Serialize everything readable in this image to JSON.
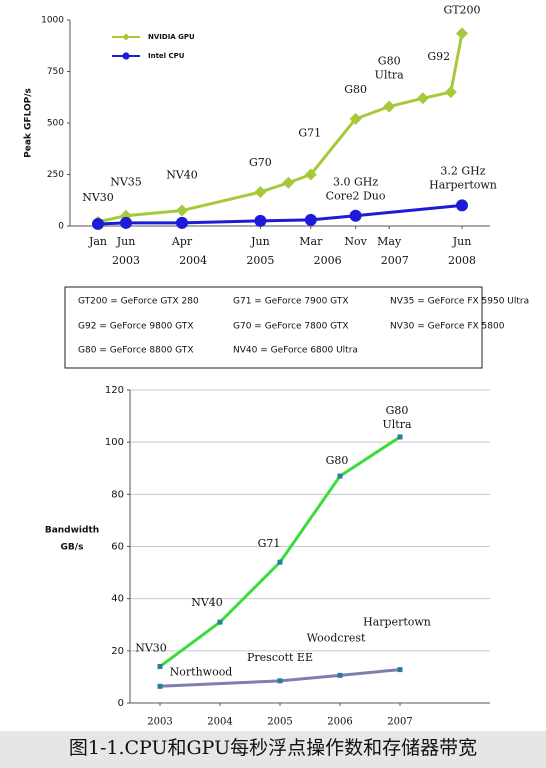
{
  "chart_data": [
    {
      "type": "line",
      "y_label": "Peak GFLOP/s",
      "legend": "top-left",
      "grid": false,
      "xlim": [
        "2002-08",
        "2008-11"
      ],
      "ylim": [
        0,
        1000
      ],
      "yticks": [
        0,
        250,
        500,
        750,
        1000
      ],
      "xticks": [
        {
          "value": "2003-01",
          "label": "Jan"
        },
        {
          "value": "2003-06",
          "label": "Jun"
        },
        {
          "value": "2004-04",
          "label": "Apr"
        },
        {
          "value": "2005-06",
          "label": "Jun"
        },
        {
          "value": "2006-03",
          "label": "Mar"
        },
        {
          "value": "2006-11",
          "label": "Nov"
        },
        {
          "value": "2007-05",
          "label": "May"
        },
        {
          "value": "2008-06",
          "label": "Jun"
        }
      ],
      "year_ticks": [
        {
          "value": "2003-06",
          "label": "2003"
        },
        {
          "value": "2004-06",
          "label": "2004"
        },
        {
          "value": "2005-06",
          "label": "2005"
        },
        {
          "value": "2006-06",
          "label": "2006"
        },
        {
          "value": "2007-06",
          "label": "2007"
        },
        {
          "value": "2008-06",
          "label": "2008"
        }
      ],
      "series": [
        {
          "name": "NVIDIA GPU",
          "color": "#a6c93a",
          "marker": "diamond",
          "x": [
            "2003-01",
            "2003-06",
            "2004-04",
            "2005-06",
            "2005-11",
            "2006-03",
            "2006-11",
            "2007-05",
            "2007-11",
            "2008-04",
            "2008-06"
          ],
          "values": [
            20,
            50,
            75,
            165,
            210,
            250,
            520,
            580,
            620,
            650,
            935
          ],
          "point_labels": [
            "NV30",
            "NV35",
            "NV40",
            "G70",
            null,
            "G71",
            "G80",
            [
              "G80",
              "Ultra"
            ],
            null,
            "G92",
            "GT200"
          ]
        },
        {
          "name": "Intel CPU",
          "color": "#1c1cd8",
          "marker": "circle",
          "x": [
            "2003-01",
            "2003-06",
            "2004-04",
            "2005-06",
            "2006-03",
            "2006-11",
            "2008-06"
          ],
          "values": [
            10,
            15,
            15,
            25,
            30,
            50,
            100
          ],
          "point_labels": [
            null,
            null,
            null,
            null,
            null,
            [
              "3.0 GHz",
              "Core2 Duo"
            ],
            [
              "3.2 GHz",
              "Harpertown"
            ]
          ]
        }
      ]
    },
    {
      "type": "line",
      "y_label": [
        "Bandwidth",
        "GB/s"
      ],
      "grid": true,
      "xlim": [
        2002.5,
        2008.5
      ],
      "ylim": [
        0,
        120
      ],
      "yticks": [
        0,
        20,
        40,
        60,
        80,
        100,
        120
      ],
      "xticks": [
        2003,
        2004,
        2005,
        2006,
        2007
      ],
      "series": [
        {
          "color": "#3ddc3d",
          "marker": "square",
          "x": [
            2003,
            2004,
            2005,
            2006,
            2007
          ],
          "values": [
            14,
            31,
            54,
            87,
            102
          ],
          "point_labels": [
            "NV30",
            "NV40",
            "G71",
            "G80",
            [
              "G80",
              "Ultra"
            ]
          ]
        },
        {
          "color": "#7b7fb0",
          "marker": "square",
          "x": [
            2003,
            2005,
            2006,
            2007
          ],
          "values": [
            6.4,
            8.5,
            10.6,
            12.8
          ],
          "point_labels": [
            "Northwood",
            "Prescott EE",
            "Woodcrest",
            "Harpertown"
          ]
        }
      ]
    }
  ],
  "legend_table": {
    "rows": [
      [
        "GT200 = GeForce GTX 280",
        "G71 = GeForce 7900 GTX",
        "NV35 = GeForce FX 5950 Ultra"
      ],
      [
        "G92 = GeForce 9800 GTX",
        "G70 = GeForce 7800 GTX",
        "NV30 = GeForce FX 5800"
      ],
      [
        "G80 = GeForce 8800 GTX",
        "NV40 = GeForce 6800 Ultra"
      ]
    ]
  },
  "caption": "图1-1.CPU和GPU每秒浮点操作数和存储器带宽"
}
